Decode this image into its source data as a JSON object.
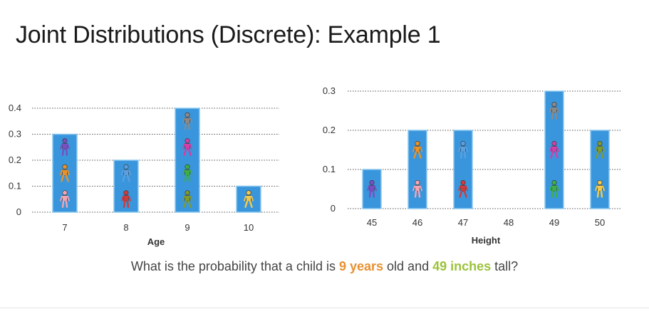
{
  "slide": {
    "title": "Joint Distributions (Discrete): Example 1",
    "question_prefix": "What is the probability that a child is ",
    "question_age": "9 years",
    "question_mid": " old and ",
    "question_height": "49 inches",
    "question_suffix": " tall?"
  },
  "colors": {
    "bar": "#3a96dc",
    "bar_edge": "#8cc8f0",
    "highlight_age": "#e8902f",
    "highlight_height": "#9bc23a"
  },
  "figure_palette": [
    "#7a4fbf",
    "#e8922a",
    "#f2a6b4",
    "#cf3b3b",
    "#5aa0e0",
    "#8a8a8a",
    "#d23fa8",
    "#3dae4a",
    "#7f9a2e",
    "#f2c94c",
    "#6a7a2a"
  ],
  "chart_data": [
    {
      "type": "bar",
      "title": "",
      "xlabel": "Age",
      "ylabel": "",
      "categories": [
        "7",
        "8",
        "9",
        "10"
      ],
      "values": [
        0.3,
        0.2,
        0.4,
        0.1
      ],
      "ylim": [
        0,
        0.4
      ],
      "yticks": [
        "0",
        "0.1",
        "0.2",
        "0.3",
        "0.4"
      ],
      "grid": "dotted horizontal",
      "figures": [
        [
          "purple-child-icon",
          "orange-runner-icon",
          "pink-girl-icon"
        ],
        [
          "blue-runner-icon",
          "red-runner-icon"
        ],
        [
          "gray-walker-icon",
          "magenta-walker-icon",
          "green-walker-icon",
          "olive-walker-icon"
        ],
        [
          "yellow-child-icon"
        ]
      ]
    },
    {
      "type": "bar",
      "title": "",
      "xlabel": "Height",
      "ylabel": "",
      "categories": [
        "45",
        "46",
        "47",
        "48",
        "49",
        "50"
      ],
      "values": [
        0.1,
        0.2,
        0.2,
        0.0,
        0.3,
        0.2
      ],
      "ylim": [
        0,
        0.3
      ],
      "yticks": [
        "0",
        "0.1",
        "0.2",
        "0.3"
      ],
      "grid": "dotted horizontal",
      "figures": [
        [
          "purple-child-icon"
        ],
        [
          "orange-runner-icon",
          "pink-girl-icon"
        ],
        [
          "blue-runner-icon",
          "red-runner-icon"
        ],
        [],
        [
          "gray-walker-icon",
          "magenta-walker-icon",
          "green-walker-icon"
        ],
        [
          "olive-walker-icon",
          "yellow-child-icon"
        ]
      ]
    }
  ]
}
